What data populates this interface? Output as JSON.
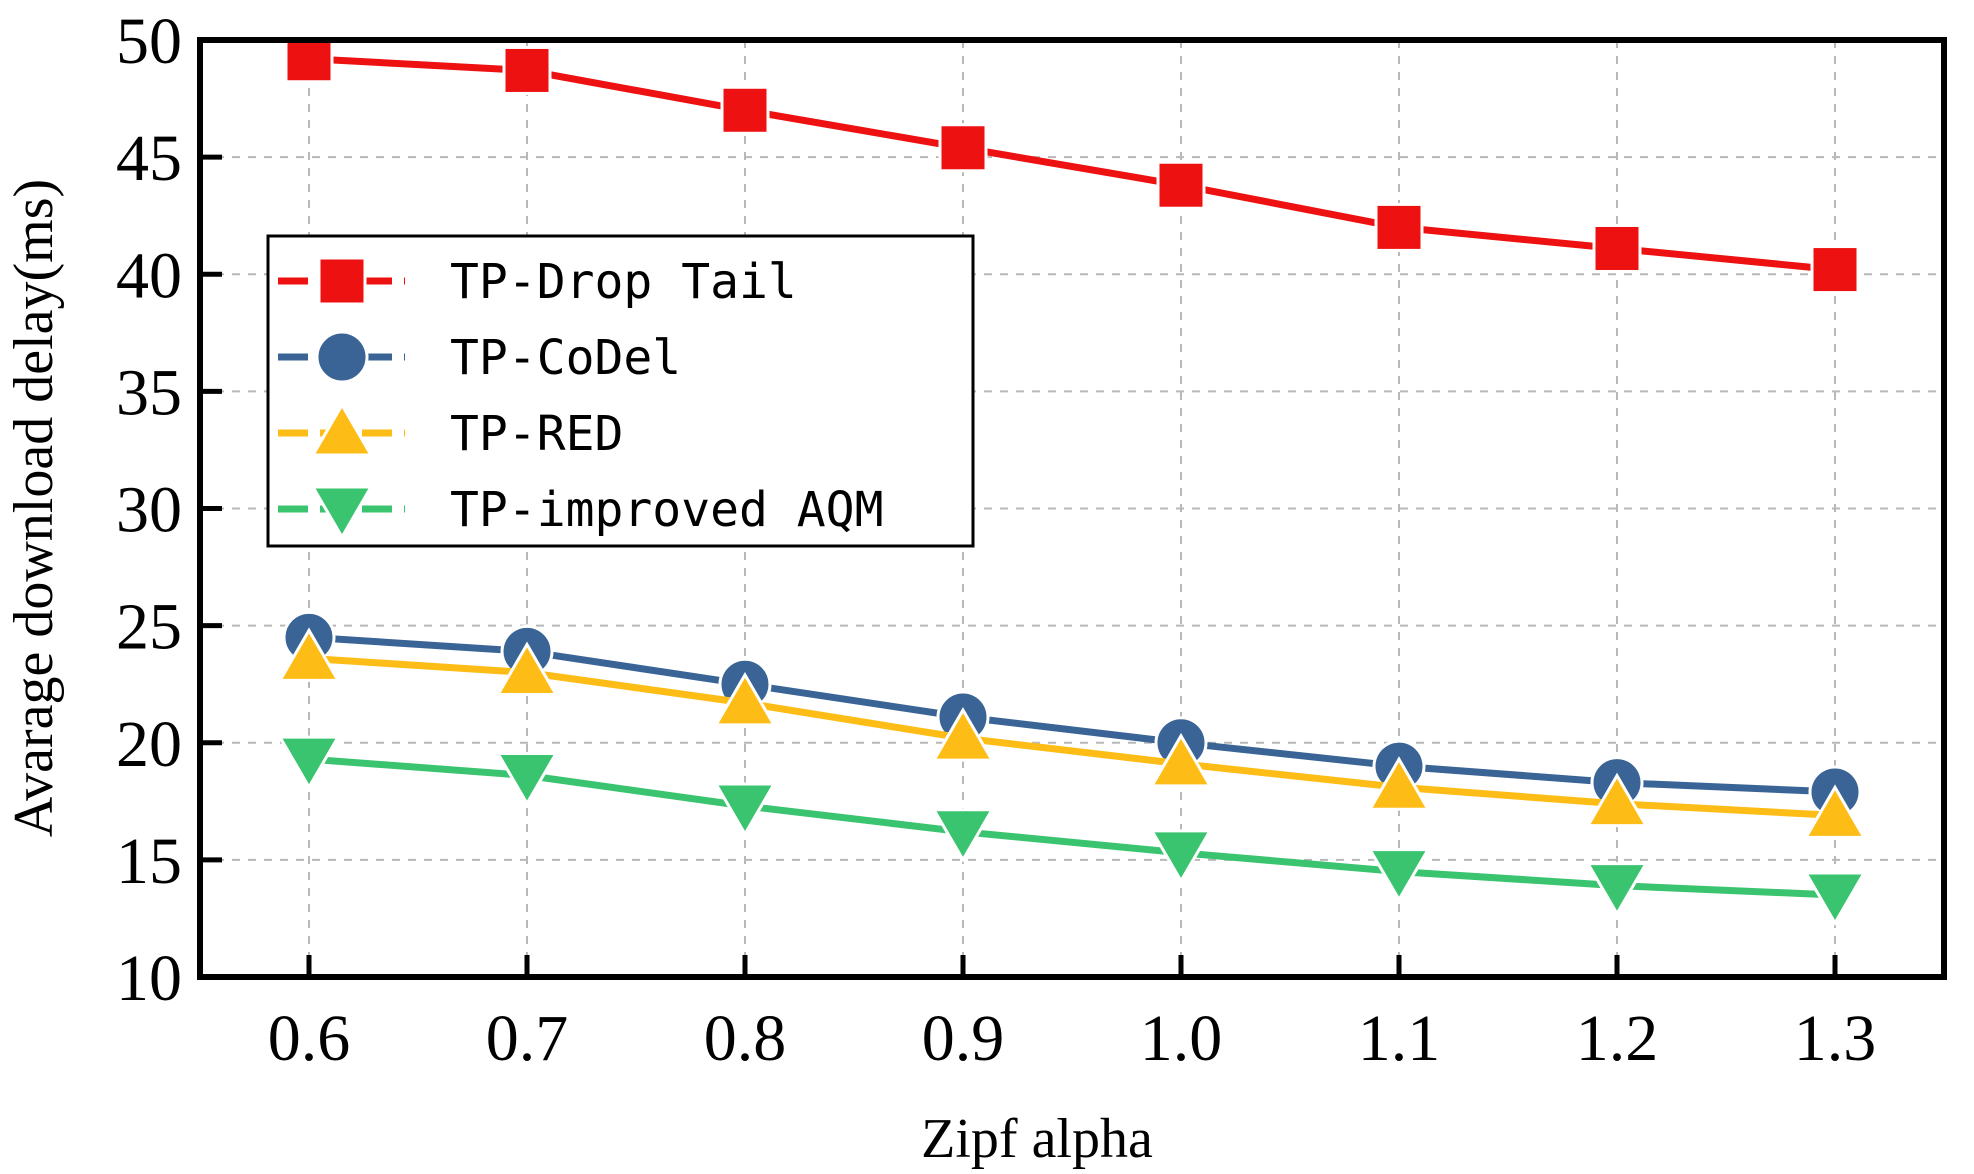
{
  "chart_data": {
    "type": "line",
    "title": "",
    "xlabel": "Zipf alpha",
    "ylabel": "Avarage download delay(ms)",
    "x": [
      0.6,
      0.7,
      0.8,
      0.9,
      1.0,
      1.1,
      1.2,
      1.3
    ],
    "x_tick_labels": [
      "0.6",
      "0.7",
      "0.8",
      "0.9",
      "1.0",
      "1.1",
      "1.2",
      "1.3"
    ],
    "y_tick_labels": [
      "10",
      "15",
      "20",
      "25",
      "30",
      "35",
      "40",
      "45",
      "50"
    ],
    "ylim": [
      10,
      50
    ],
    "grid": true,
    "legend_location": "upper-left",
    "series": [
      {
        "name": "TP-Drop Tail",
        "marker": "square",
        "color": "#ee1111",
        "values": [
          49.2,
          48.7,
          47.0,
          45.4,
          43.8,
          42.0,
          41.1,
          40.2
        ]
      },
      {
        "name": "TP-CoDel",
        "marker": "circle",
        "color": "#3a6496",
        "values": [
          24.5,
          23.9,
          22.5,
          21.1,
          20.0,
          19.0,
          18.3,
          17.9
        ]
      },
      {
        "name": "TP-RED",
        "marker": "triangle-up",
        "color": "#fdbd16",
        "values": [
          23.6,
          23.0,
          21.7,
          20.2,
          19.1,
          18.1,
          17.4,
          16.9
        ]
      },
      {
        "name": "TP-improved AQM",
        "marker": "triangle-down",
        "color": "#3bc46f",
        "values": [
          19.3,
          18.6,
          17.3,
          16.2,
          15.3,
          14.5,
          13.9,
          13.5
        ]
      }
    ]
  }
}
